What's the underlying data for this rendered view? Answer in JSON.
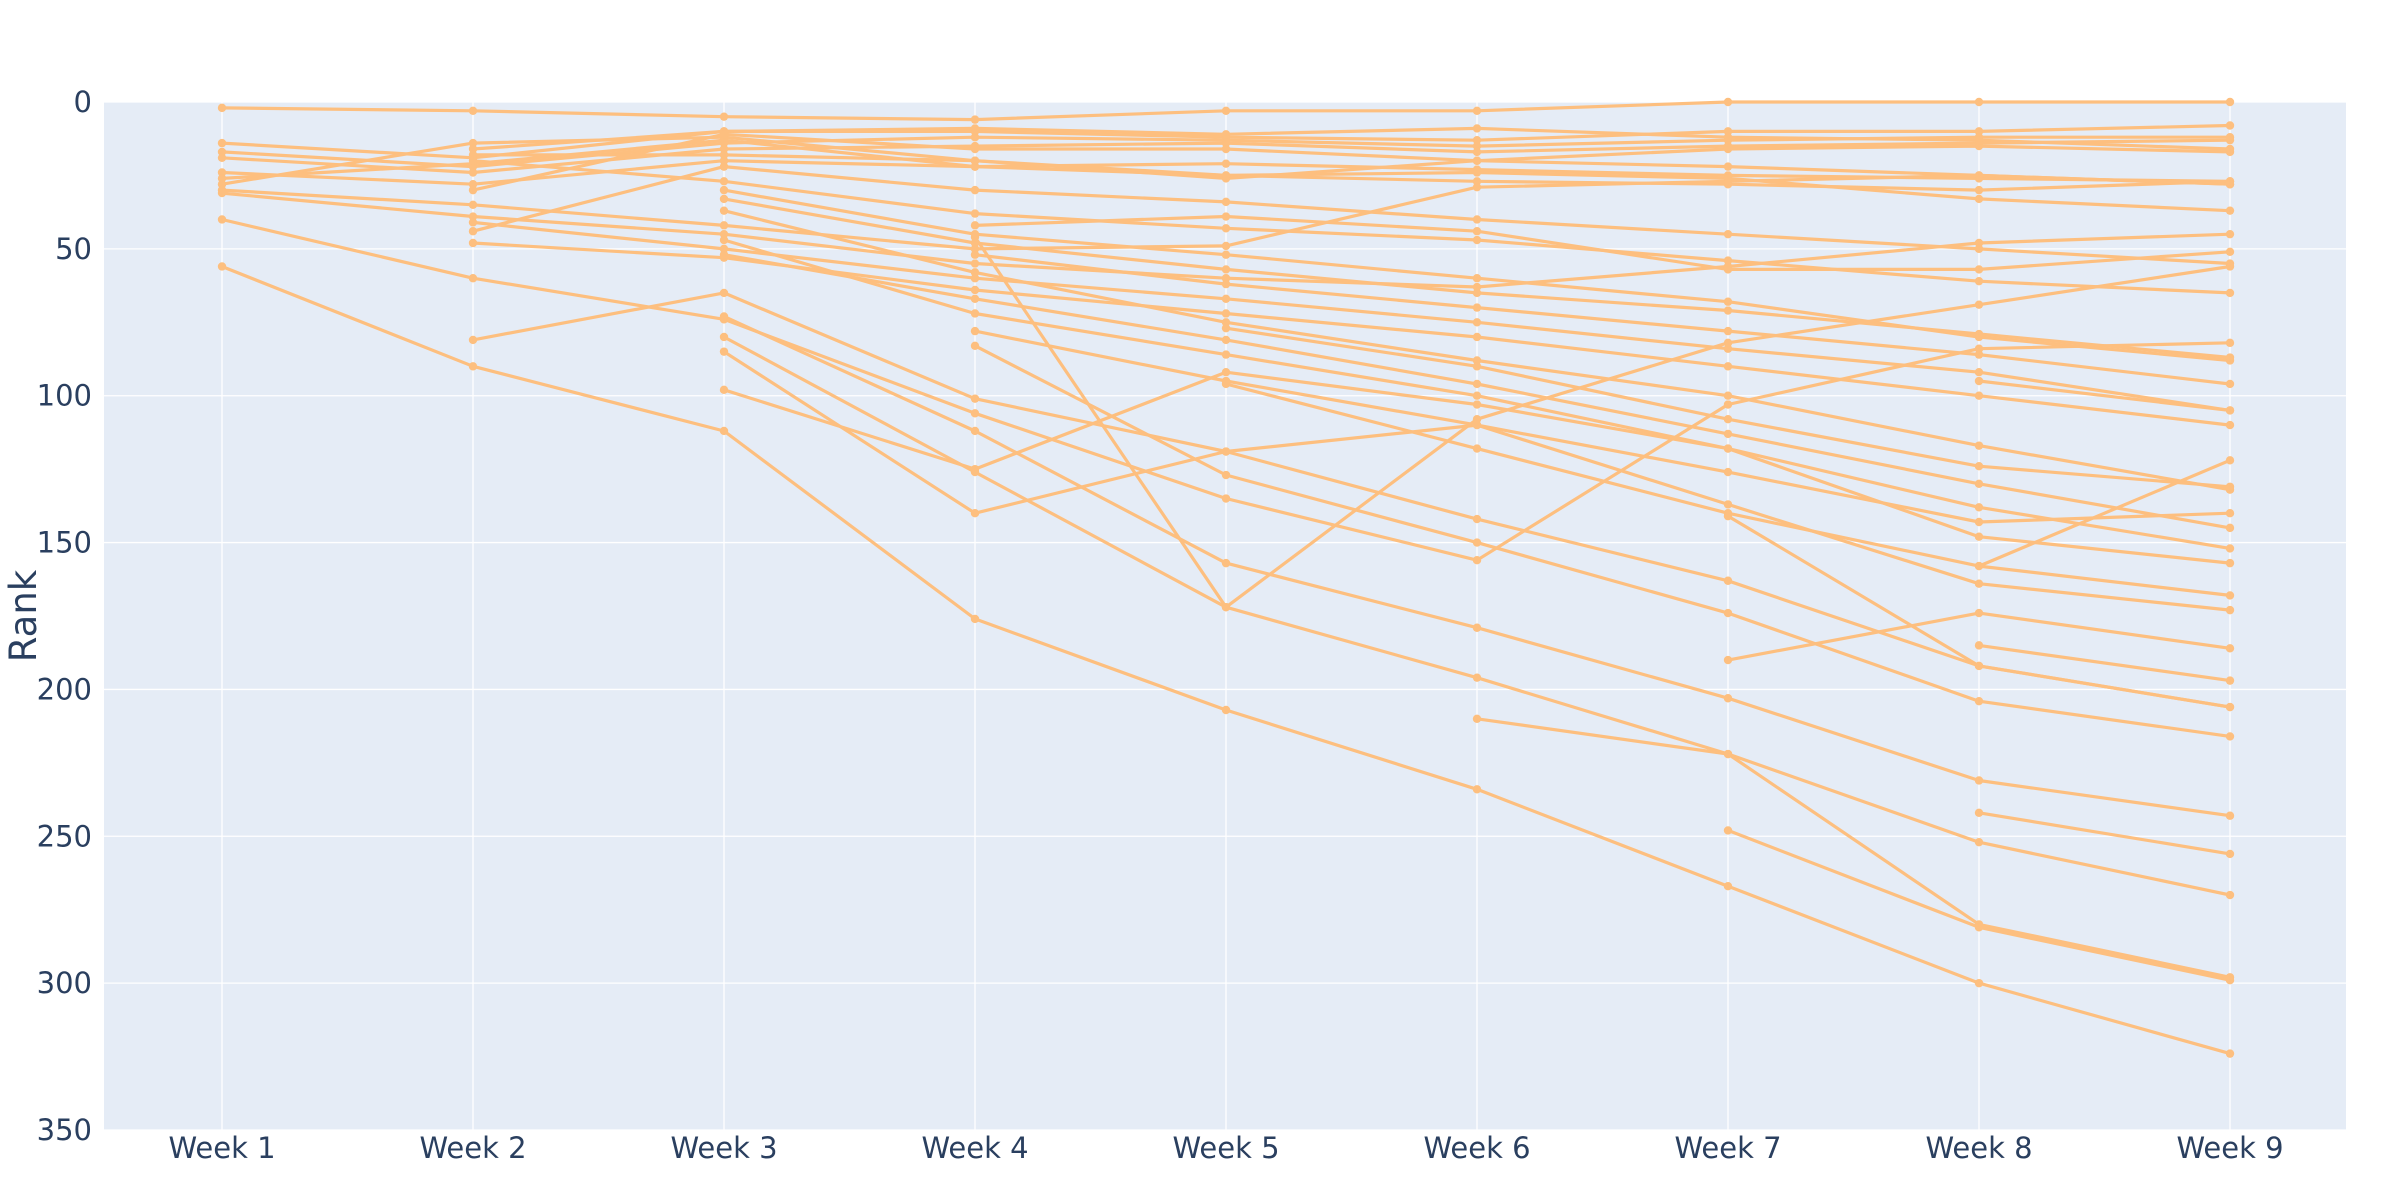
{
  "chart_data": {
    "type": "line",
    "title": "",
    "xlabel": "",
    "ylabel": "Rank",
    "ylim": [
      0,
      350
    ],
    "y_reversed": true,
    "grid": true,
    "legend": "none",
    "colors": {
      "line": "#fdbf7f",
      "plot_bg": "#e5ecf6",
      "grid": "#ffffff",
      "text": "#2a3f5f"
    },
    "categories": [
      "Week 1",
      "Week 2",
      "Week 3",
      "Week 4",
      "Week 5",
      "Week 6",
      "Week 7",
      "Week 8",
      "Week 9"
    ],
    "y_ticks": [
      0,
      50,
      100,
      150,
      200,
      250,
      300,
      350
    ],
    "series": [
      {
        "values": [
          2,
          3,
          5,
          6,
          3,
          3,
          0,
          0,
          0
        ]
      },
      {
        "values": [
          14,
          19,
          10,
          10,
          12,
          13,
          10,
          10,
          8
        ]
      },
      {
        "values": [
          17,
          22,
          14,
          12,
          13,
          15,
          13,
          12,
          12
        ]
      },
      {
        "values": [
          19,
          24,
          16,
          15,
          14,
          17,
          15,
          14,
          13
        ]
      },
      {
        "values": [
          24,
          28,
          20,
          22,
          21,
          23,
          25,
          26,
          27
        ]
      },
      {
        "values": [
          26,
          21,
          13,
          22,
          25,
          27,
          28,
          30,
          27
        ]
      },
      {
        "values": [
          28,
          14,
          12,
          20,
          26,
          20,
          16,
          15,
          17
        ]
      },
      {
        "values": [
          30,
          35,
          42,
          50,
          49,
          29,
          27,
          25,
          28
        ]
      },
      {
        "values": [
          31,
          39,
          45,
          55,
          60,
          63,
          56,
          48,
          45
        ]
      },
      {
        "values": [
          40,
          60,
          74,
          106,
          135,
          156,
          103,
          84,
          82
        ]
      },
      {
        "values": [
          56,
          90,
          112,
          176,
          207,
          234,
          267,
          300,
          324
        ]
      },
      {
        "values": [
          null,
          16,
          10,
          9,
          11,
          9,
          12,
          13,
          16
        ]
      },
      {
        "values": [
          null,
          18,
          18,
          20,
          25,
          24,
          26,
          33,
          37
        ]
      },
      {
        "values": [
          null,
          20,
          27,
          38,
          43,
          47,
          54,
          61,
          65
        ]
      },
      {
        "values": [
          null,
          30,
          11,
          16,
          16,
          20,
          22,
          25,
          28
        ]
      },
      {
        "values": [
          null,
          41,
          50,
          60,
          67,
          75,
          84,
          92,
          105
        ]
      },
      {
        "values": [
          null,
          44,
          22,
          30,
          34,
          40,
          45,
          50,
          55
        ]
      },
      {
        "values": [
          null,
          48,
          53,
          64,
          72,
          80,
          90,
          100,
          110
        ]
      },
      {
        "values": [
          null,
          81,
          65,
          101,
          119,
          142,
          163,
          192,
          206
        ]
      },
      {
        "values": [
          null,
          null,
          30,
          45,
          52,
          60,
          68,
          80,
          88
        ]
      },
      {
        "values": [
          null,
          null,
          37,
          58,
          75,
          88,
          100,
          117,
          132
        ]
      },
      {
        "values": [
          null,
          null,
          52,
          67,
          81,
          96,
          113,
          130,
          145
        ]
      },
      {
        "values": [
          null,
          null,
          73,
          112,
          157,
          179,
          203,
          231,
          243
        ]
      },
      {
        "values": [
          null,
          null,
          80,
          126,
          172,
          196,
          222,
          252,
          270
        ]
      },
      {
        "values": [
          null,
          null,
          85,
          140,
          119,
          110,
          126,
          143,
          140
        ]
      },
      {
        "values": [
          null,
          null,
          98,
          125,
          92,
          103,
          118,
          148,
          157
        ]
      },
      {
        "values": [
          null,
          null,
          33,
          48,
          57,
          65,
          71,
          79,
          87
        ]
      },
      {
        "values": [
          null,
          null,
          47,
          72,
          86,
          100,
          118,
          138,
          152
        ]
      },
      {
        "values": [
          null,
          null,
          null,
          78,
          95,
          110,
          137,
          164,
          173
        ]
      },
      {
        "values": [
          null,
          null,
          null,
          83,
          127,
          150,
          174,
          204,
          216
        ]
      },
      {
        "values": [
          null,
          null,
          null,
          42,
          39,
          44,
          57,
          57,
          51
        ]
      },
      {
        "values": [
          null,
          null,
          null,
          52,
          62,
          70,
          78,
          86,
          96
        ]
      },
      {
        "values": [
          null,
          null,
          null,
          46,
          172,
          108,
          82,
          69,
          56
        ]
      },
      {
        "values": [
          null,
          null,
          null,
          null,
          77,
          90,
          108,
          124,
          131
        ]
      },
      {
        "values": [
          null,
          null,
          null,
          null,
          96,
          118,
          140,
          158,
          168
        ]
      },
      {
        "values": [
          null,
          null,
          null,
          null,
          null,
          210,
          222,
          280,
          298
        ]
      },
      {
        "values": [
          null,
          null,
          null,
          null,
          null,
          null,
          141,
          192,
          206
        ]
      },
      {
        "values": [
          null,
          null,
          null,
          null,
          null,
          null,
          190,
          174,
          186
        ]
      },
      {
        "values": [
          null,
          null,
          null,
          null,
          null,
          null,
          248,
          281,
          299
        ]
      },
      {
        "values": [
          null,
          null,
          null,
          null,
          null,
          null,
          null,
          158,
          122
        ]
      },
      {
        "values": [
          null,
          null,
          null,
          null,
          null,
          null,
          null,
          242,
          256
        ]
      },
      {
        "values": [
          null,
          null,
          null,
          null,
          null,
          null,
          null,
          185,
          197
        ]
      },
      {
        "values": [
          null,
          null,
          null,
          null,
          null,
          null,
          null,
          95,
          105
        ]
      }
    ]
  }
}
